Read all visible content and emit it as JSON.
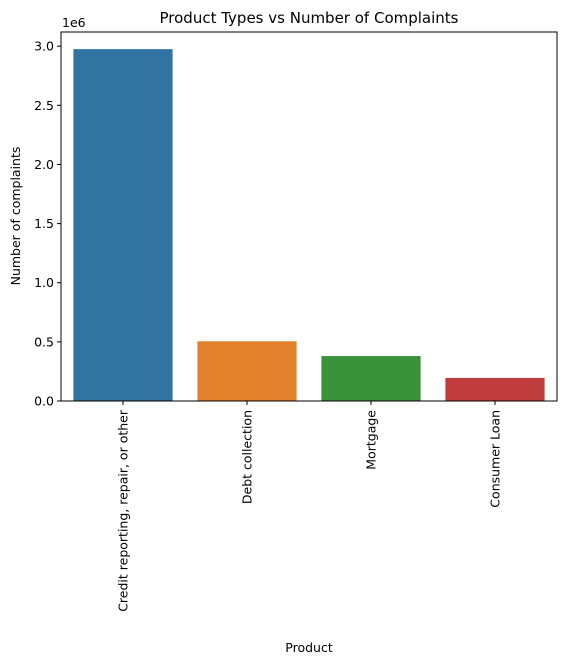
{
  "chart_data": {
    "type": "bar",
    "title": "Product Types vs Number of Complaints",
    "xlabel": "Product",
    "ylabel": "Number of complaints",
    "y_offset_label": "1e6",
    "categories": [
      "Credit reporting, repair, or other",
      "Debt collection",
      "Mortgage",
      "Consumer Loan"
    ],
    "values": [
      2975000,
      505000,
      380000,
      195000
    ],
    "colors": [
      "#3274a1",
      "#e1812c",
      "#3a923a",
      "#c03d3e"
    ],
    "ylim": [
      0,
      3120000
    ],
    "yticks": [
      0,
      500000,
      1000000,
      1500000,
      2000000,
      2500000,
      3000000
    ],
    "ytick_labels": [
      "0.0",
      "0.5",
      "1.0",
      "1.5",
      "2.0",
      "2.5",
      "3.0"
    ],
    "grid": false,
    "legend": "none"
  }
}
